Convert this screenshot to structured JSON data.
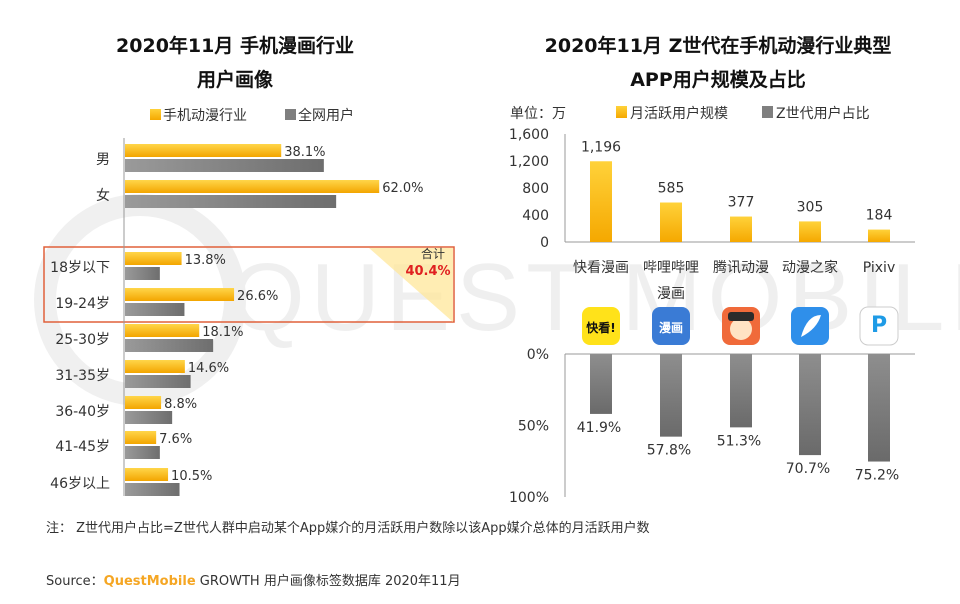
{
  "left": {
    "title_line1": "2020年11月 手机漫画行业",
    "title_line2": "用户画像",
    "legend": [
      "手机动漫行业",
      "全网用户"
    ],
    "highlight": {
      "label": "合计",
      "value": "40.4%"
    }
  },
  "right": {
    "title_line1": "2020年11月 Z世代在手机动漫行业典型",
    "title_line2": "APP用户规模及占比",
    "unit": "单位：万",
    "legend": [
      "月活跃用户规模",
      "Z世代用户占比"
    ]
  },
  "note": "注： Z世代用户占比=Z世代人群中启动某个App媒介的月活跃用户数除以该App媒介总体的月活跃用户数",
  "source": {
    "prefix": "Source：",
    "brand": "QuestMobile",
    "rest": " GROWTH 用户画像标签数据库 2020年11月"
  },
  "watermark": "QUEST MOBILE",
  "colors": {
    "orange": "#FFC21A",
    "gray": "#7F7F7F",
    "highlight": "#E0603A",
    "red": "#E02020",
    "brand": "#F5A623"
  },
  "app_icons": [
    {
      "name": "kuaikan-icon",
      "text": "快看!",
      "bg": "#FFE21A",
      "fg": "#111111"
    },
    {
      "name": "bilibili-manhua-icon",
      "text": "漫画",
      "bg": "#3A7BD5",
      "fg": "#ffffff"
    },
    {
      "name": "tencent-dongman-icon",
      "text": "",
      "bg": "#F06A3A",
      "fg": "#ffffff"
    },
    {
      "name": "dongmanzhijia-icon",
      "text": "",
      "bg": "#2F8FEA",
      "fg": "#ffffff"
    },
    {
      "name": "pixiv-icon",
      "text": "P",
      "bg": "#FFFFFF",
      "fg": "#1E9BE6"
    }
  ],
  "chart_data": [
    {
      "type": "bar",
      "orientation": "horizontal",
      "title": "2020年11月 手机漫画行业 用户画像",
      "categories": [
        "男",
        "女",
        "18岁以下",
        "19-24岁",
        "25-30岁",
        "31-35岁",
        "36-40岁",
        "41-45岁",
        "46岁以上"
      ],
      "series": [
        {
          "name": "手机动漫行业",
          "values": [
            38.1,
            62.0,
            13.8,
            26.6,
            18.1,
            14.6,
            8.8,
            7.6,
            10.5
          ],
          "labels": [
            "38.1%",
            "62.0%",
            "13.8%",
            "26.6%",
            "18.1%",
            "14.6%",
            "8.8%",
            "7.6%",
            "10.5%"
          ]
        },
        {
          "name": "全网用户",
          "values": [
            48.5,
            51.5,
            8.5,
            14.5,
            21.5,
            16.0,
            11.5,
            8.5,
            13.3
          ]
        }
      ],
      "xlim": [
        0,
        100
      ]
    },
    {
      "type": "bar",
      "title": "2020年11月 Z世代在手机动漫行业典型 APP用户规模",
      "categories": [
        "快看漫画",
        "哔哩哔哩漫画",
        "腾讯动漫",
        "动漫之家",
        "Pixiv"
      ],
      "category_labels": [
        "快看漫画",
        "哔哩哔哩",
        "腾讯动漫",
        "动漫之家",
        "Pixiv"
      ],
      "category_label_extra": {
        "1": "漫画"
      },
      "series": [
        {
          "name": "月活跃用户规模",
          "values": [
            1196,
            585,
            377,
            305,
            184
          ],
          "labels": [
            "1,196",
            "585",
            "377",
            "305",
            "184"
          ]
        }
      ],
      "ylim": [
        0,
        1600
      ],
      "yticks": [
        "0",
        "400",
        "800",
        "1,200",
        "1,600"
      ],
      "ylabel": "单位：万"
    },
    {
      "type": "bar",
      "title": "Z世代用户占比",
      "categories": [
        "快看漫画",
        "哔哩哔哩漫画",
        "腾讯动漫",
        "动漫之家",
        "Pixiv"
      ],
      "series": [
        {
          "name": "Z世代用户占比",
          "values": [
            41.9,
            57.8,
            51.3,
            70.7,
            75.2
          ],
          "labels": [
            "41.9%",
            "57.8%",
            "51.3%",
            "70.7%",
            "75.2%"
          ]
        }
      ],
      "ylim": [
        0,
        100
      ],
      "yticks": [
        "0%",
        "50%",
        "100%"
      ],
      "direction": "downward"
    }
  ]
}
